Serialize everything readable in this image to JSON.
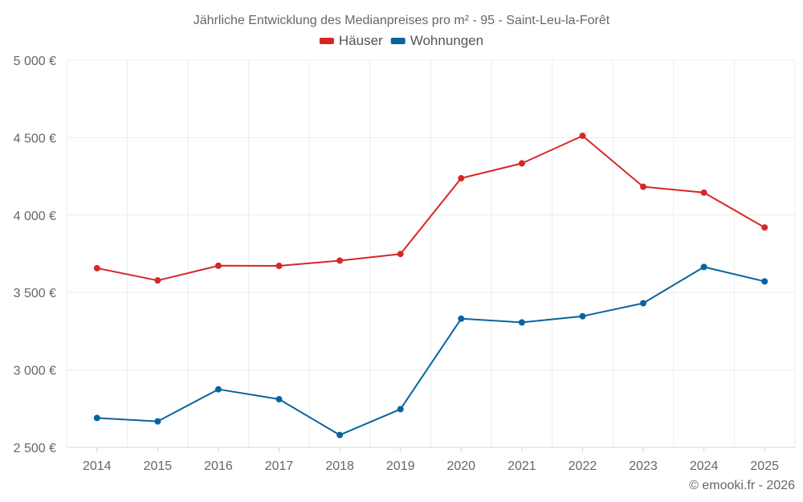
{
  "chart_data": {
    "type": "line",
    "title": "Jährliche Entwicklung des Medianpreises pro m² - 95 - Saint-Leu-la-Forêt",
    "categories": [
      "2014",
      "2015",
      "2016",
      "2017",
      "2018",
      "2019",
      "2020",
      "2021",
      "2022",
      "2023",
      "2024",
      "2025"
    ],
    "series": [
      {
        "name": "Häuser",
        "color": "#d62728",
        "values": [
          3657,
          3578,
          3673,
          3672,
          3706,
          3749,
          4238,
          4334,
          4512,
          4183,
          4145,
          3920
        ]
      },
      {
        "name": "Wohnungen",
        "color": "#08649c",
        "values": [
          2690,
          2668,
          2875,
          2811,
          2580,
          2747,
          3331,
          3307,
          3347,
          3431,
          3665,
          3572
        ]
      }
    ],
    "ylim": [
      2500,
      5000
    ],
    "yticks": [
      2500,
      3000,
      3500,
      4000,
      4500,
      5000
    ],
    "ytick_labels": [
      "2 500 €",
      "3 000 €",
      "3 500 €",
      "4 000 €",
      "4 500 €",
      "5 000 €"
    ],
    "grid": true,
    "legend_position": "top-center",
    "xlabel": "",
    "ylabel": ""
  },
  "credit": "© emooki.fr - 2026"
}
